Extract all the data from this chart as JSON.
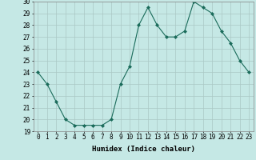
{
  "x": [
    0,
    1,
    2,
    3,
    4,
    5,
    6,
    7,
    8,
    9,
    10,
    11,
    12,
    13,
    14,
    15,
    16,
    17,
    18,
    19,
    20,
    21,
    22,
    23
  ],
  "y": [
    24,
    23,
    21.5,
    20,
    19.5,
    19.5,
    19.5,
    19.5,
    20,
    23,
    24.5,
    28,
    29.5,
    28,
    27,
    27,
    27.5,
    30,
    29.5,
    29,
    27.5,
    26.5,
    25,
    24
  ],
  "line_color": "#1a6b5a",
  "marker": "D",
  "marker_size": 2,
  "bg_color": "#c5e8e5",
  "grid_color": "#aac8c5",
  "xlabel": "Humidex (Indice chaleur)",
  "ylim": [
    19,
    30
  ],
  "yticks": [
    19,
    20,
    21,
    22,
    23,
    24,
    25,
    26,
    27,
    28,
    29,
    30
  ],
  "xticks": [
    0,
    1,
    2,
    3,
    4,
    5,
    6,
    7,
    8,
    9,
    10,
    11,
    12,
    13,
    14,
    15,
    16,
    17,
    18,
    19,
    20,
    21,
    22,
    23
  ],
  "label_fontsize": 6.5,
  "tick_fontsize": 5.5
}
